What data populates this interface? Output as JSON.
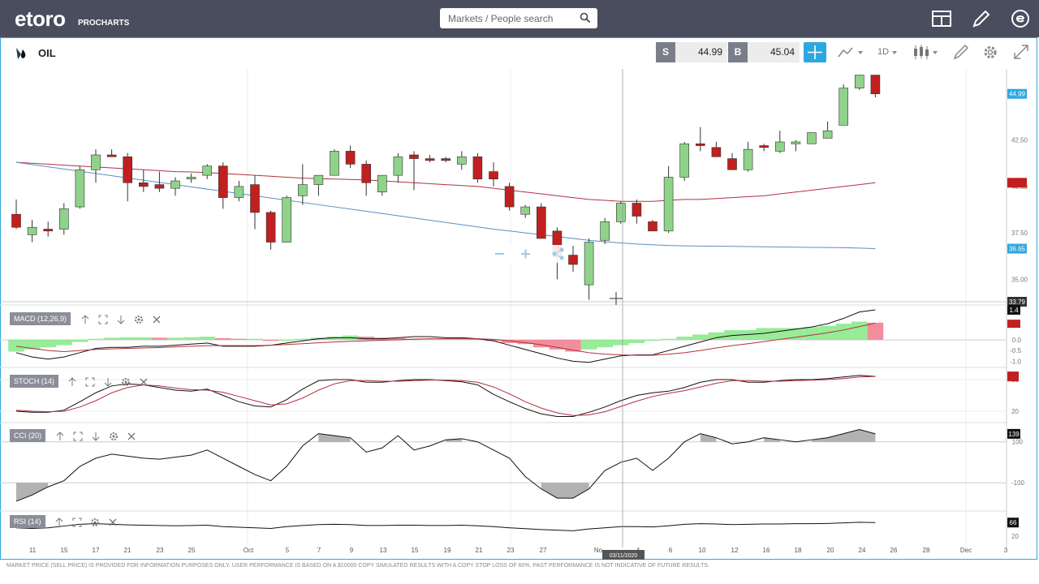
{
  "topbar": {
    "logo": "etoro",
    "logo_sub": "PROCHARTS",
    "search_placeholder": "Markets / People search"
  },
  "header": {
    "symbol": "OIL",
    "sell_tag": "S",
    "sell_value": "44.99",
    "buy_tag": "B",
    "buy_value": "45.04",
    "timeframe": "1D"
  },
  "price_axis": {
    "ticks": [
      "44.99",
      "42.50",
      "40.00",
      "37.50",
      "36.65",
      "35.00",
      "33.79"
    ],
    "badge_current": "44.99",
    "badge_ma": "36.65",
    "badge_cross": "33.79"
  },
  "indicators": {
    "macd": {
      "label": "MACD (12,26,9)",
      "ticks": [
        "1.4",
        "0.0",
        "-0.5",
        "-1.0"
      ]
    },
    "stoch": {
      "label": "STOCH (14)",
      "ticks": [
        "80",
        "20"
      ]
    },
    "cci": {
      "label": "CCI (20)",
      "ticks": [
        "139",
        "100",
        "-100"
      ]
    },
    "rsi": {
      "label": "RSI (14)",
      "ticks": [
        "66",
        "20"
      ]
    }
  },
  "x_axis": {
    "labels": [
      "11",
      "15",
      "17",
      "21",
      "23",
      "25",
      "Oct",
      "5",
      "7",
      "9",
      "13",
      "15",
      "19",
      "21",
      "23",
      "27",
      "No",
      "4",
      "6",
      "10",
      "12",
      "16",
      "18",
      "20",
      "24",
      "26",
      "28",
      "Dec",
      "3"
    ],
    "crosshair_date": "03/11/2020"
  },
  "footer": {
    "disclaimer": "MARKET PRICE (SELL PRICE) IS PROVIDED FOR INFORMATION PURPOSES ONLY. USER PERFORMANCE IS BASED ON A $10000 COPY SIMULATED RESULTS WITH A COPY STOP LOSS OF 60%. PAST PERFORMANCE IS NOT INDICATIVE OF FUTURE RESULTS."
  },
  "colors": {
    "up": "#8fd28a",
    "down": "#c0201f",
    "ma_red": "#b53040",
    "ma_blue": "#5b8ec4",
    "accent": "#2ea7e0",
    "topbar": "#4a4d5e"
  },
  "chart_data": {
    "type": "candlestick",
    "symbol": "OIL",
    "timeframe": "1D",
    "ylim": [
      33.79,
      46
    ],
    "candles": [
      {
        "o": 38.5,
        "h": 39.3,
        "l": 37.7,
        "c": 37.8
      },
      {
        "o": 37.4,
        "h": 38.2,
        "l": 37.0,
        "c": 37.8
      },
      {
        "o": 37.7,
        "h": 38.1,
        "l": 37.3,
        "c": 37.6
      },
      {
        "o": 37.7,
        "h": 39.1,
        "l": 37.4,
        "c": 38.8
      },
      {
        "o": 38.9,
        "h": 41.1,
        "l": 38.8,
        "c": 40.9
      },
      {
        "o": 40.9,
        "h": 42.0,
        "l": 40.2,
        "c": 41.7
      },
      {
        "o": 41.7,
        "h": 42.0,
        "l": 41.6,
        "c": 41.6
      },
      {
        "o": 41.6,
        "h": 41.8,
        "l": 39.2,
        "c": 40.2
      },
      {
        "o": 40.2,
        "h": 40.9,
        "l": 39.7,
        "c": 40.0
      },
      {
        "o": 40.1,
        "h": 40.8,
        "l": 39.7,
        "c": 39.9
      },
      {
        "o": 39.9,
        "h": 40.5,
        "l": 39.5,
        "c": 40.3
      },
      {
        "o": 40.4,
        "h": 40.7,
        "l": 40.2,
        "c": 40.5
      },
      {
        "o": 40.6,
        "h": 41.2,
        "l": 40.4,
        "c": 41.1
      },
      {
        "o": 41.1,
        "h": 41.3,
        "l": 38.8,
        "c": 39.4
      },
      {
        "o": 39.4,
        "h": 40.3,
        "l": 39.2,
        "c": 40.0
      },
      {
        "o": 40.1,
        "h": 40.6,
        "l": 37.7,
        "c": 38.6
      },
      {
        "o": 38.6,
        "h": 38.7,
        "l": 36.6,
        "c": 37.0
      },
      {
        "o": 37.0,
        "h": 39.5,
        "l": 37.0,
        "c": 39.4
      },
      {
        "o": 39.5,
        "h": 41.2,
        "l": 39.0,
        "c": 40.1
      },
      {
        "o": 40.1,
        "h": 40.6,
        "l": 39.5,
        "c": 40.6
      },
      {
        "o": 40.6,
        "h": 42.0,
        "l": 40.6,
        "c": 41.9
      },
      {
        "o": 41.9,
        "h": 42.2,
        "l": 41.0,
        "c": 41.2
      },
      {
        "o": 41.2,
        "h": 41.4,
        "l": 39.5,
        "c": 40.2
      },
      {
        "o": 39.7,
        "h": 40.6,
        "l": 39.5,
        "c": 40.6
      },
      {
        "o": 40.6,
        "h": 41.8,
        "l": 40.2,
        "c": 41.6
      },
      {
        "o": 41.7,
        "h": 41.9,
        "l": 39.8,
        "c": 41.5
      },
      {
        "o": 41.5,
        "h": 41.7,
        "l": 41.3,
        "c": 41.4
      },
      {
        "o": 41.5,
        "h": 41.6,
        "l": 41.3,
        "c": 41.4
      },
      {
        "o": 41.2,
        "h": 41.9,
        "l": 40.9,
        "c": 41.6
      },
      {
        "o": 41.6,
        "h": 41.8,
        "l": 40.2,
        "c": 40.4
      },
      {
        "o": 40.8,
        "h": 41.3,
        "l": 40.0,
        "c": 40.4
      },
      {
        "o": 40.0,
        "h": 40.2,
        "l": 38.7,
        "c": 38.9
      },
      {
        "o": 38.5,
        "h": 39.0,
        "l": 38.3,
        "c": 38.9
      },
      {
        "o": 38.9,
        "h": 39.1,
        "l": 37.2,
        "c": 37.2
      },
      {
        "o": 37.6,
        "h": 37.8,
        "l": 35.0,
        "c": 36.2
      },
      {
        "o": 36.3,
        "h": 36.8,
        "l": 35.4,
        "c": 35.8
      },
      {
        "o": 34.7,
        "h": 37.2,
        "l": 33.9,
        "c": 37.0
      },
      {
        "o": 37.1,
        "h": 38.3,
        "l": 36.9,
        "c": 38.1
      },
      {
        "o": 38.1,
        "h": 39.2,
        "l": 38.0,
        "c": 39.1
      },
      {
        "o": 39.1,
        "h": 39.3,
        "l": 38.0,
        "c": 38.4
      },
      {
        "o": 38.1,
        "h": 38.2,
        "l": 37.6,
        "c": 37.6
      },
      {
        "o": 37.6,
        "h": 41.1,
        "l": 37.5,
        "c": 40.5
      },
      {
        "o": 40.5,
        "h": 42.4,
        "l": 40.3,
        "c": 42.3
      },
      {
        "o": 42.3,
        "h": 43.2,
        "l": 41.9,
        "c": 42.2
      },
      {
        "o": 42.1,
        "h": 42.4,
        "l": 41.6,
        "c": 41.6
      },
      {
        "o": 41.5,
        "h": 41.8,
        "l": 40.9,
        "c": 40.9
      },
      {
        "o": 40.9,
        "h": 42.4,
        "l": 40.8,
        "c": 42.0
      },
      {
        "o": 42.2,
        "h": 42.3,
        "l": 41.9,
        "c": 42.1
      },
      {
        "o": 41.9,
        "h": 43.0,
        "l": 41.8,
        "c": 42.4
      },
      {
        "o": 42.3,
        "h": 42.5,
        "l": 41.9,
        "c": 42.4
      },
      {
        "o": 42.3,
        "h": 42.9,
        "l": 42.3,
        "c": 42.9
      },
      {
        "o": 42.6,
        "h": 43.5,
        "l": 42.6,
        "c": 43.0
      },
      {
        "o": 43.3,
        "h": 45.5,
        "l": 43.3,
        "c": 45.3
      },
      {
        "o": 45.3,
        "h": 46.0,
        "l": 45.2,
        "c": 46.0
      },
      {
        "o": 46.0,
        "h": 46.0,
        "l": 44.8,
        "c": 44.99
      }
    ],
    "ma_red": [
      41.3,
      41.25,
      41.2,
      41.15,
      41.1,
      41.05,
      41.0,
      40.95,
      40.9,
      40.85,
      40.8,
      40.78,
      40.75,
      40.7,
      40.65,
      40.6,
      40.55,
      40.5,
      40.45,
      40.42,
      40.4,
      40.38,
      40.35,
      40.3,
      40.25,
      40.2,
      40.15,
      40.1,
      40.05,
      40.0,
      39.9,
      39.8,
      39.7,
      39.6,
      39.5,
      39.4,
      39.3,
      39.25,
      39.2,
      39.2,
      39.2,
      39.25,
      39.3,
      39.3,
      39.35,
      39.4,
      39.45,
      39.5,
      39.6,
      39.7,
      39.8,
      39.9,
      40.0,
      40.1,
      40.2
    ],
    "ma_blue": [
      41.3,
      41.18,
      41.06,
      40.94,
      40.82,
      40.7,
      40.58,
      40.46,
      40.34,
      40.22,
      40.1,
      39.98,
      39.86,
      39.74,
      39.62,
      39.5,
      39.38,
      39.26,
      39.14,
      39.02,
      38.9,
      38.78,
      38.66,
      38.54,
      38.42,
      38.3,
      38.18,
      38.06,
      37.94,
      37.82,
      37.7,
      37.6,
      37.5,
      37.4,
      37.3,
      37.2,
      37.1,
      37.02,
      36.96,
      36.9,
      36.86,
      36.82,
      36.8,
      36.79,
      36.78,
      36.77,
      36.76,
      36.75,
      36.74,
      36.73,
      36.72,
      36.71,
      36.7,
      36.68,
      36.65
    ],
    "macd_hist": [
      -0.55,
      -0.45,
      -0.35,
      -0.25,
      -0.1,
      0.05,
      0.1,
      0.12,
      0.12,
      0.1,
      0.1,
      0.12,
      0.15,
      0.08,
      0.05,
      0.05,
      -0.05,
      -0.05,
      0.05,
      0.1,
      0.15,
      0.2,
      0.15,
      0.1,
      0.08,
      0.05,
      0.05,
      0.05,
      0.06,
      0.05,
      -0.05,
      -0.15,
      -0.2,
      -0.35,
      -0.45,
      -0.55,
      -0.45,
      -0.35,
      -0.25,
      -0.15,
      -0.05,
      0.05,
      0.15,
      0.25,
      0.35,
      0.45,
      0.45,
      0.55,
      0.55,
      0.55,
      0.6,
      0.65,
      0.75,
      0.85,
      0.8
    ],
    "macd_line": [
      -0.6,
      -0.8,
      -0.9,
      -0.8,
      -0.6,
      -0.4,
      -0.35,
      -0.35,
      -0.3,
      -0.3,
      -0.25,
      -0.2,
      -0.15,
      -0.3,
      -0.3,
      -0.3,
      -0.25,
      -0.15,
      -0.05,
      0.05,
      0.1,
      0.1,
      0.05,
      0.05,
      0.1,
      0.15,
      0.15,
      0.1,
      0.1,
      0.05,
      -0.05,
      -0.25,
      -0.45,
      -0.65,
      -0.85,
      -1.0,
      -1.05,
      -0.9,
      -0.75,
      -0.7,
      -0.7,
      -0.5,
      -0.3,
      -0.1,
      0.1,
      0.2,
      0.25,
      0.3,
      0.4,
      0.5,
      0.6,
      0.75,
      1.0,
      1.3,
      1.4
    ],
    "macd_signal": [
      -0.3,
      -0.4,
      -0.5,
      -0.55,
      -0.5,
      -0.45,
      -0.42,
      -0.4,
      -0.38,
      -0.36,
      -0.33,
      -0.3,
      -0.27,
      -0.27,
      -0.27,
      -0.27,
      -0.25,
      -0.22,
      -0.18,
      -0.14,
      -0.1,
      -0.07,
      -0.05,
      -0.02,
      0.0,
      0.03,
      0.05,
      0.05,
      0.05,
      0.05,
      0.02,
      -0.05,
      -0.13,
      -0.23,
      -0.35,
      -0.48,
      -0.6,
      -0.67,
      -0.7,
      -0.72,
      -0.72,
      -0.67,
      -0.6,
      -0.5,
      -0.38,
      -0.27,
      -0.18,
      -0.08,
      0.02,
      0.12,
      0.22,
      0.33,
      0.46,
      0.62,
      0.78
    ],
    "stoch_k": [
      20,
      18,
      18,
      22,
      38,
      55,
      68,
      72,
      70,
      65,
      60,
      58,
      62,
      50,
      38,
      30,
      28,
      42,
      62,
      78,
      80,
      80,
      75,
      75,
      78,
      80,
      80,
      78,
      76,
      70,
      52,
      38,
      25,
      15,
      10,
      10,
      18,
      28,
      40,
      50,
      55,
      58,
      65,
      75,
      80,
      80,
      75,
      75,
      78,
      80,
      80,
      82,
      85,
      88,
      86
    ],
    "stoch_d": [
      22,
      20,
      19,
      20,
      28,
      40,
      55,
      65,
      70,
      68,
      64,
      61,
      60,
      56,
      48,
      40,
      32,
      34,
      45,
      60,
      72,
      78,
      78,
      77,
      77,
      78,
      79,
      79,
      78,
      75,
      66,
      53,
      38,
      26,
      17,
      12,
      13,
      19,
      29,
      39,
      48,
      54,
      59,
      66,
      73,
      78,
      78,
      77,
      77,
      78,
      79,
      80,
      82,
      85,
      86
    ],
    "cci": [
      -190,
      -160,
      -120,
      -90,
      -20,
      20,
      40,
      30,
      20,
      15,
      25,
      35,
      60,
      20,
      -20,
      -60,
      -90,
      -20,
      80,
      140,
      130,
      120,
      50,
      70,
      130,
      60,
      80,
      110,
      115,
      100,
      60,
      20,
      -70,
      -130,
      -175,
      -175,
      -130,
      -40,
      0,
      20,
      -40,
      20,
      100,
      140,
      120,
      90,
      100,
      120,
      110,
      100,
      110,
      120,
      140,
      160,
      139
    ],
    "rsi": [
      48,
      46,
      48,
      54,
      60,
      62,
      60,
      58,
      57,
      56,
      55,
      56,
      57,
      52,
      50,
      48,
      46,
      52,
      56,
      59,
      60,
      59,
      56,
      56,
      57,
      57,
      56,
      56,
      57,
      55,
      52,
      48,
      45,
      42,
      40,
      38,
      44,
      48,
      52,
      52,
      51,
      55,
      60,
      62,
      61,
      59,
      60,
      61,
      61,
      62,
      62,
      63,
      65,
      67,
      66
    ]
  }
}
